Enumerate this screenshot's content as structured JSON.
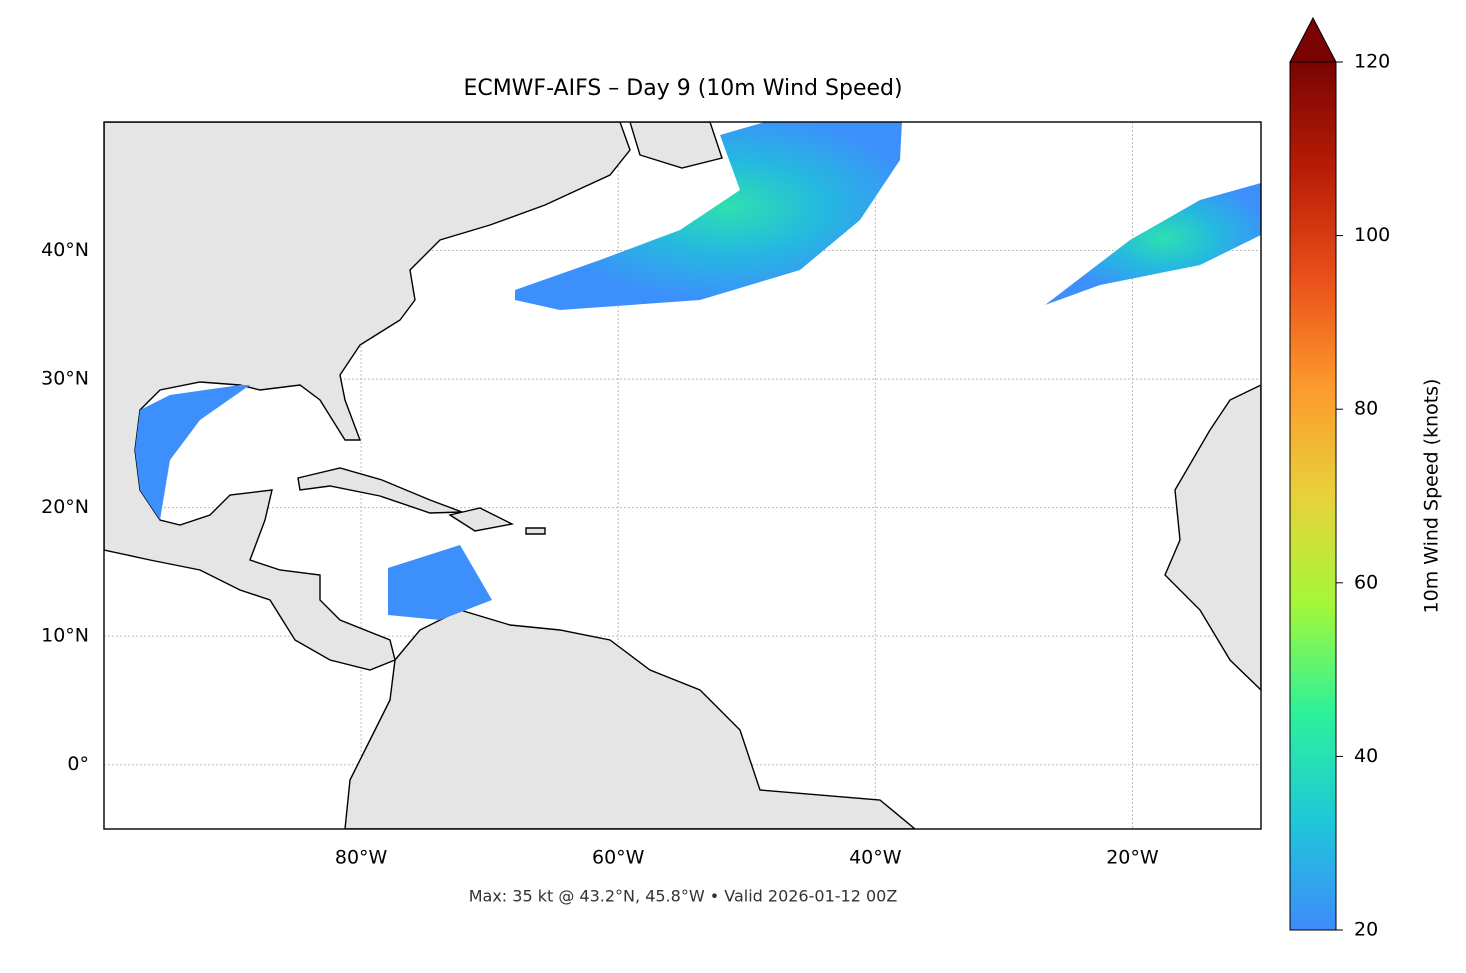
{
  "title": "ECMWF-AIFS – Day 9 (10m Wind Speed)",
  "map": {
    "xlim": [
      -100,
      -10
    ],
    "ylim": [
      -5,
      50
    ],
    "xticks": [
      {
        "value": -80,
        "label": "80°W"
      },
      {
        "value": -60,
        "label": "60°W"
      },
      {
        "value": -40,
        "label": "40°W"
      },
      {
        "value": -20,
        "label": "20°W"
      }
    ],
    "yticks": [
      {
        "value": 0,
        "label": "0°"
      },
      {
        "value": 10,
        "label": "10°N"
      },
      {
        "value": 20,
        "label": "20°N"
      },
      {
        "value": 30,
        "label": "30°N"
      },
      {
        "value": 40,
        "label": "40°N"
      }
    ],
    "grid": true
  },
  "colorbar": {
    "label": "10m Wind Speed (knots)",
    "lim": [
      20,
      120
    ],
    "ticks": [
      20,
      40,
      60,
      80,
      100,
      120
    ],
    "colormap": [
      "#3e8bfb",
      "#1fc7d9",
      "#2cf29a",
      "#a4f73a",
      "#e8d13b",
      "#fd9a2c",
      "#e9501a",
      "#b81d05",
      "#7a0403"
    ]
  },
  "footnote": "Max: 35 kt @ 43.2°N, 45.8°W • Valid 2026-01-12 00Z"
}
